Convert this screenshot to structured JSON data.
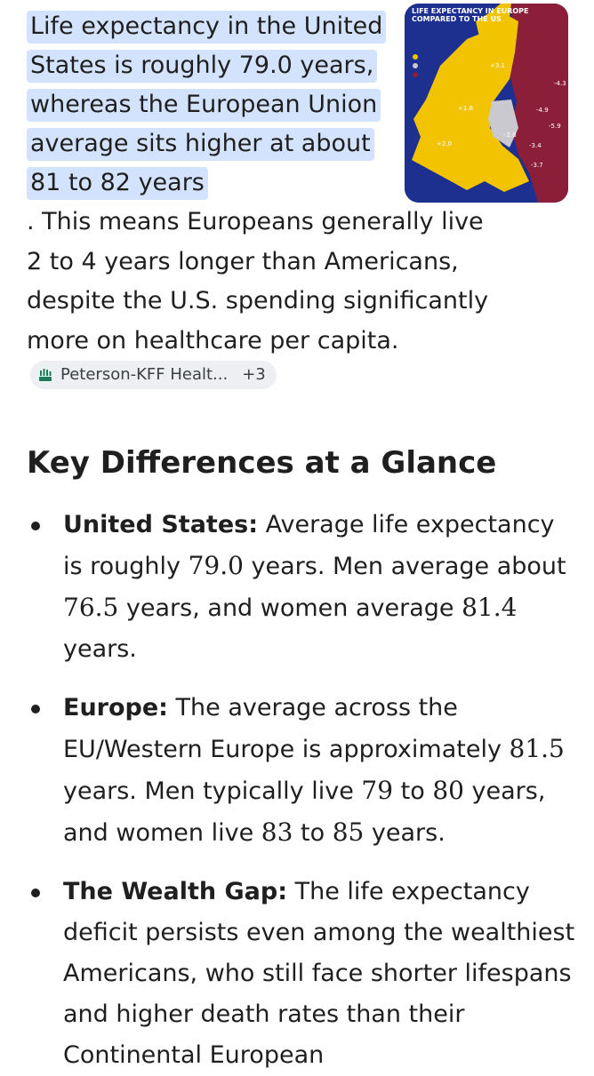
{
  "intro": {
    "highlighted": "Life expectancy in the United States is roughly 79.0 years, whereas the European Union average sits higher at about 81 to 82 years",
    "rest": ". This means Europeans generally live 2 to 4 years longer than Americans, despite the U.S. spending significantly more on healthcare per capita."
  },
  "source_chip": {
    "label": "Peterson-KFF Healt...",
    "extra": "+3"
  },
  "map_thumbnail": {
    "title_line1": "Life Expectancy in Europe",
    "title_line2": "Compared to the US",
    "colors": {
      "background": "#1d2f8f",
      "higher": "#f2c300",
      "similar": "#c9c9cf",
      "lower": "#8b1f3a"
    },
    "values": [
      "-4.3",
      "-4.9",
      "-5.9",
      "-3.4",
      "-3.7",
      "-2.8",
      "+2.0",
      "+1.8",
      "+3.1"
    ]
  },
  "section": {
    "heading": "Key Differences at a Glance"
  },
  "items": [
    {
      "term": "United States:",
      "t1": " Average life expectancy is roughly ",
      "n1": "79.0",
      "t2": " years. Men average about ",
      "n2": "76.5",
      "t3": " years, and women average ",
      "n3": "81.4",
      "t4": " years."
    },
    {
      "term": "Europe:",
      "t1": " The average across the EU/Western Europe is approximately ",
      "n1": "81.5",
      "t2": " years. Men typically live ",
      "n2": "79",
      "t3": " to ",
      "n3": "80",
      "t4": " years, and women live ",
      "n4": "83",
      "t5": " to ",
      "n5": "85",
      "t6": " years."
    },
    {
      "term": "The Wealth Gap:",
      "t1": " The life expectancy deficit persists even among the wealthiest Americans, who still face shorter lifespans and higher death rates than their Continental European"
    }
  ]
}
